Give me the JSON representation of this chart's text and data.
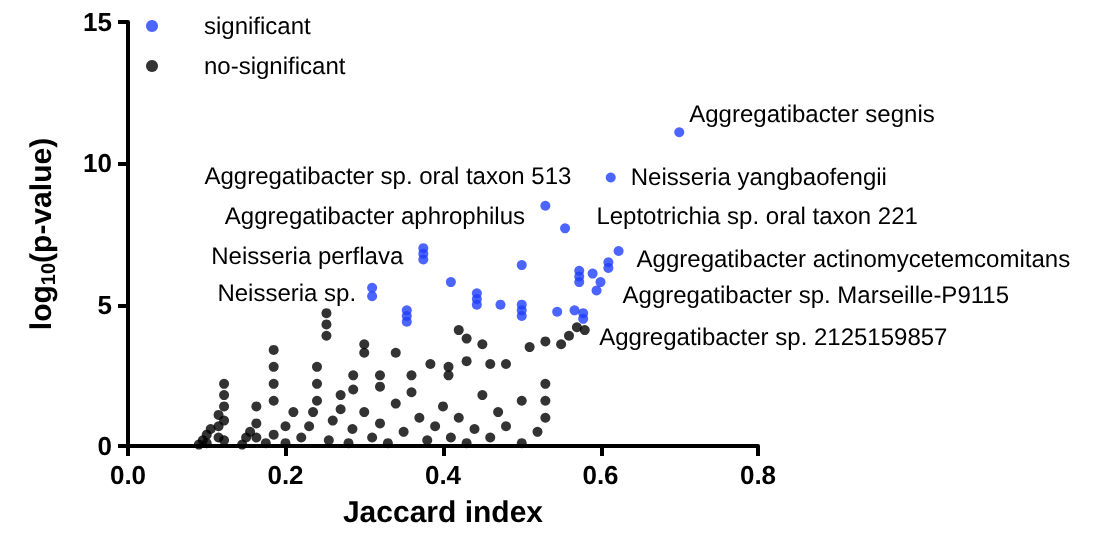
{
  "chart_data": {
    "type": "scatter",
    "xlabel": "Jaccard index",
    "ylabel": "log$_{10}$(p-value)",
    "xlim": [
      0,
      0.8
    ],
    "xticks": [
      {
        "value": 0,
        "label": "0.0"
      },
      {
        "value": 0.2,
        "label": "0.2"
      },
      {
        "value": 0.4,
        "label": "0.4"
      },
      {
        "value": 0.6,
        "label": "0.6"
      },
      {
        "value": 0.8,
        "label": "0.8"
      }
    ],
    "ylim": [
      0,
      15
    ],
    "yticks": [
      0,
      5,
      10,
      15
    ],
    "grid": false,
    "legend": "top left",
    "marker": "circle",
    "series": [
      {
        "name": "significant",
        "color": "#1f3fff",
        "x": [
          0.7,
          0.613,
          0.53,
          0.555,
          0.375,
          0.375,
          0.375,
          0.623,
          0.5,
          0.41,
          0.31,
          0.31,
          0.443,
          0.443,
          0.443,
          0.473,
          0.5,
          0.5,
          0.5,
          0.354,
          0.354,
          0.354,
          0.545,
          0.567,
          0.578,
          0.578,
          0.573,
          0.573,
          0.573,
          0.59,
          0.595,
          0.6,
          0.61,
          0.61
        ],
        "values": [
          11.1,
          9.5,
          8.5,
          7.7,
          6.6,
          6.8,
          7.0,
          6.9,
          6.4,
          5.8,
          5.3,
          5.6,
          5.0,
          5.2,
          5.4,
          5.0,
          4.6,
          4.8,
          5.0,
          4.4,
          4.6,
          4.8,
          4.75,
          4.8,
          4.5,
          4.7,
          5.8,
          6.0,
          6.2,
          6.1,
          5.5,
          5.8,
          6.3,
          6.5
        ]
      },
      {
        "name": "no-significant",
        "color": "#000000",
        "x": [
          0.09,
          0.095,
          0.1,
          0.1,
          0.105,
          0.115,
          0.115,
          0.115,
          0.122,
          0.122,
          0.122,
          0.122,
          0.122,
          0.145,
          0.15,
          0.155,
          0.163,
          0.163,
          0.163,
          0.175,
          0.185,
          0.185,
          0.185,
          0.185,
          0.185,
          0.2,
          0.2,
          0.21,
          0.22,
          0.23,
          0.235,
          0.24,
          0.24,
          0.24,
          0.252,
          0.252,
          0.252,
          0.255,
          0.26,
          0.27,
          0.27,
          0.28,
          0.285,
          0.286,
          0.286,
          0.3,
          0.3,
          0.3,
          0.31,
          0.32,
          0.32,
          0.32,
          0.33,
          0.34,
          0.34,
          0.35,
          0.36,
          0.36,
          0.37,
          0.38,
          0.384,
          0.39,
          0.4,
          0.407,
          0.407,
          0.41,
          0.42,
          0.42,
          0.43,
          0.43,
          0.43,
          0.44,
          0.45,
          0.45,
          0.46,
          0.46,
          0.47,
          0.48,
          0.48,
          0.5,
          0.5,
          0.51,
          0.52,
          0.53,
          0.53,
          0.53,
          0.53,
          0.55,
          0.56,
          0.57,
          0.58
        ],
        "values": [
          0.05,
          0.2,
          0.4,
          0.1,
          0.6,
          0.3,
          0.7,
          1.1,
          0.2,
          0.9,
          1.4,
          1.8,
          2.2,
          0.05,
          0.3,
          0.5,
          0.3,
          0.8,
          1.4,
          0.1,
          0.4,
          1.6,
          2.2,
          2.8,
          3.4,
          0.1,
          0.7,
          1.2,
          0.3,
          0.7,
          1.2,
          1.6,
          2.2,
          2.8,
          3.9,
          4.3,
          4.7,
          0.2,
          0.9,
          1.3,
          1.8,
          0.1,
          0.6,
          2.0,
          2.5,
          1.2,
          3.3,
          3.6,
          0.3,
          0.8,
          2.1,
          2.5,
          0.1,
          1.5,
          3.3,
          0.5,
          1.9,
          2.5,
          1.0,
          0.2,
          2.9,
          0.7,
          1.4,
          2.5,
          2.8,
          0.3,
          4.1,
          1.0,
          3.8,
          3.0,
          0.1,
          0.6,
          1.8,
          3.6,
          2.9,
          0.3,
          1.2,
          2.9,
          0.7,
          0.1,
          1.6,
          3.5,
          0.5,
          1.0,
          1.6,
          2.2,
          3.7,
          3.6,
          3.9,
          4.2,
          4.1
        ]
      }
    ],
    "annotations": [
      {
        "text": "Aggregatibacter segnis",
        "x": 0.7,
        "y": 11.1
      },
      {
        "text": "Neisseria yangbaofengii",
        "x": 0.613,
        "y": 9.5
      },
      {
        "text": "Aggregatibacter sp. oral taxon 513",
        "x": 0.53,
        "y": 8.5
      },
      {
        "text": "Aggregatibacter aphrophilus",
        "x": 0.555,
        "y": 7.7
      },
      {
        "text": "Leptotrichia sp. oral taxon 221",
        "x": 0.61,
        "y": 6.5
      },
      {
        "text": "Neisseria perflava",
        "x": 0.375,
        "y": 6.8
      },
      {
        "text": "Neisseria sp.",
        "x": 0.31,
        "y": 5.5
      },
      {
        "text": "Aggregatibacter actinomycetemcomitans",
        "x": 0.623,
        "y": 6.9
      },
      {
        "text": "Aggregatibacter sp. Marseille-P9115",
        "x": 0.595,
        "y": 5.7
      },
      {
        "text": "Aggregatibacter sp. 2125159857",
        "x": 0.578,
        "y": 4.5
      }
    ]
  }
}
